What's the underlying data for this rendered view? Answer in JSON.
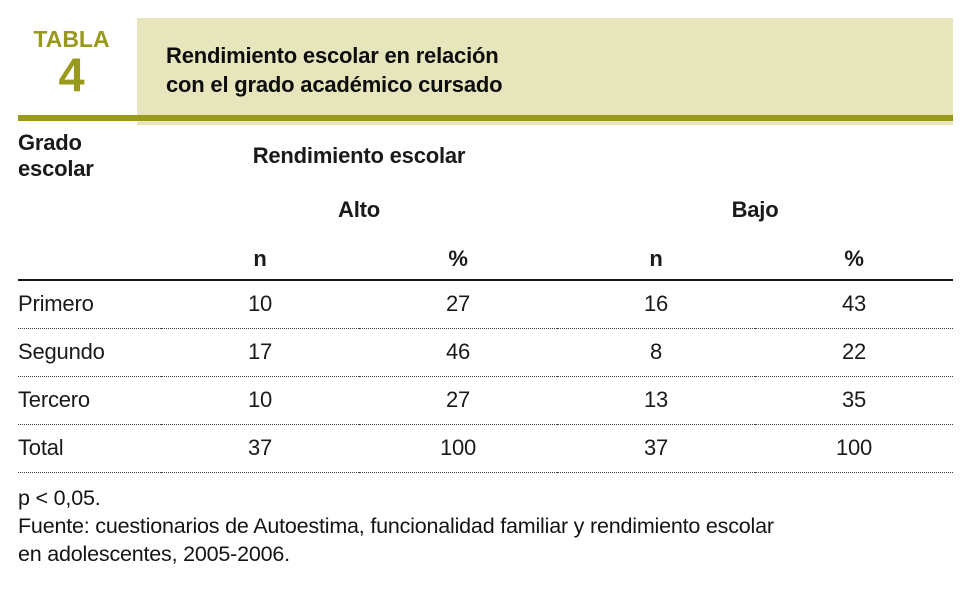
{
  "colors": {
    "olive": "#999a1c",
    "pale_box": "#e6e5bc"
  },
  "header": {
    "tag_word": "TABLA",
    "tag_number": "4",
    "title_line1": "Rendimiento escolar en relación",
    "title_line2": "con el grado académico cursado"
  },
  "table": {
    "col_grado": "Grado escolar",
    "group_header": "Rendimiento escolar",
    "subgroups": [
      "Alto",
      "Bajo"
    ],
    "measure_headers": [
      "n",
      "%",
      "n",
      "%"
    ],
    "rows": [
      {
        "grado": "Primero",
        "alto_n": "10",
        "alto_pct": "27",
        "bajo_n": "16",
        "bajo_pct": "43"
      },
      {
        "grado": "Segundo",
        "alto_n": "17",
        "alto_pct": "46",
        "bajo_n": "8",
        "bajo_pct": "22"
      },
      {
        "grado": "Tercero",
        "alto_n": "10",
        "alto_pct": "27",
        "bajo_n": "13",
        "bajo_pct": "35"
      },
      {
        "grado": "Total",
        "alto_n": "37",
        "alto_pct": "100",
        "bajo_n": "37",
        "bajo_pct": "100"
      }
    ]
  },
  "footer": {
    "p_value": "p < 0,05.",
    "source_line1": "Fuente: cuestionarios de Autoestima, funcionalidad familiar y rendimiento escolar",
    "source_line2": "en adolescentes, 2005-2006."
  }
}
